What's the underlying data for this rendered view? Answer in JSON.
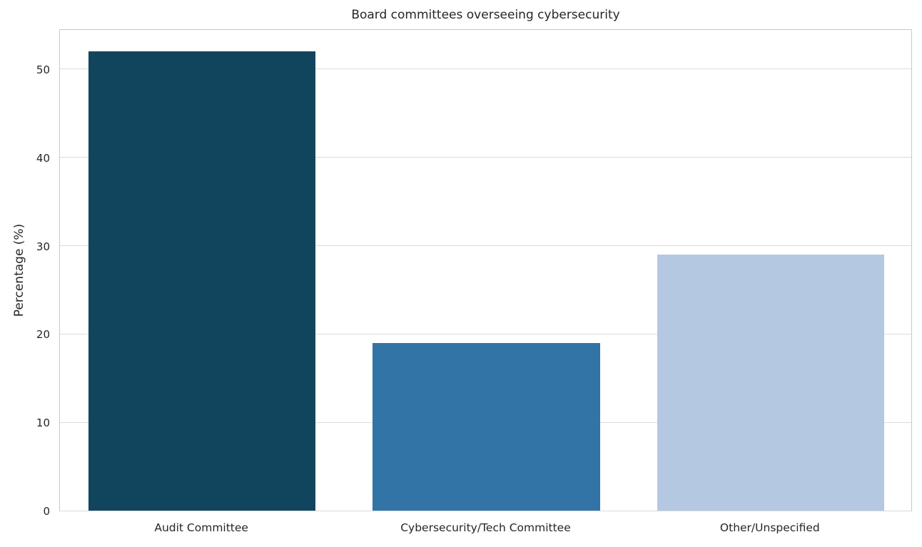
{
  "chart_data": {
    "type": "bar",
    "title": "Board committees overseeing cybersecurity",
    "xlabel": "",
    "ylabel": "Percentage (%)",
    "categories": [
      "Audit Committee",
      "Cybersecurity/Tech Committee",
      "Other/Unspecified"
    ],
    "values": [
      52,
      19,
      29
    ],
    "bar_colors": [
      "#11455e",
      "#3274a5",
      "#b4c8e2"
    ],
    "yticks": [
      0,
      10,
      20,
      30,
      40,
      50
    ],
    "ylim": [
      0,
      54.6
    ],
    "grid": "horizontal",
    "grid_color": "#dcdcdc",
    "background_color": "#ffffff",
    "text_color": "#262626",
    "legend": "none"
  }
}
